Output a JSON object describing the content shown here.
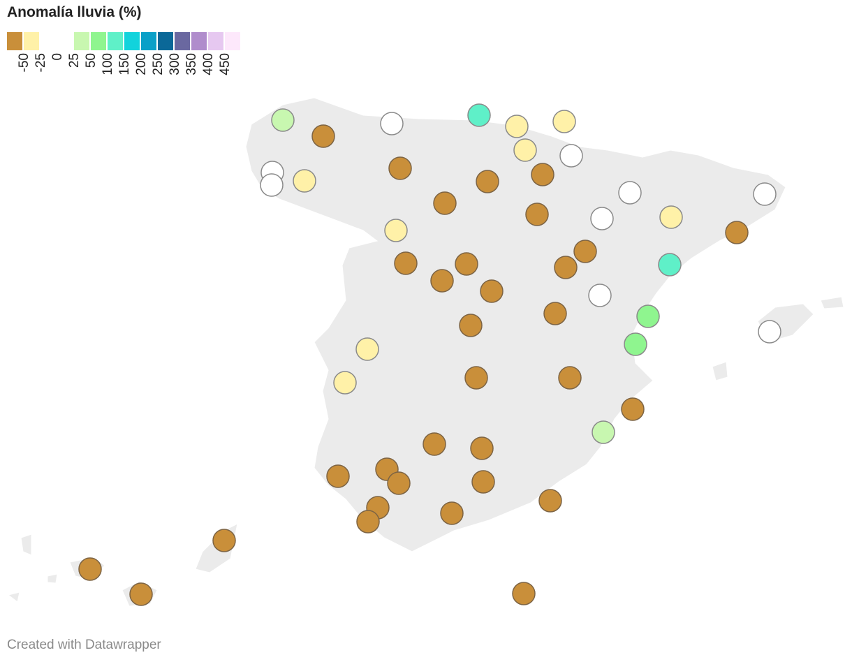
{
  "title": "Anomalía lluvia (%)",
  "legend": {
    "colors": [
      "#c98f3a",
      "#fff1a8",
      "#ffffff",
      "#ffffff",
      "#c8f7b0",
      "#8ff58f",
      "#5ff0c8",
      "#12d3dc",
      "#0aa0c8",
      "#0b6898",
      "#6a68a0",
      "#b08ccc",
      "#e6c8f0",
      "#fde8fb"
    ],
    "ticks": [
      -50,
      -25,
      0,
      25,
      50,
      100,
      150,
      200,
      250,
      300,
      350,
      400,
      450
    ]
  },
  "points": [
    "#c8f7b0",
    "#c98f3a",
    "#ffffff",
    "#5ff0c8",
    "#fff1a8",
    "#fff1a8",
    "#fff1a8",
    "#ffffff",
    "#c98f3a",
    "#ffffff",
    "#ffffff",
    "#fff1a8",
    "#c98f3a",
    "#c98f3a",
    "#c98f3a",
    "#ffffff",
    "#ffffff",
    "#c98f3a",
    "#ffffff",
    "#fff1a8",
    "#fff1a8",
    "#c98f3a",
    "#c98f3a",
    "#c98f3a",
    "#c98f3a",
    "#c98f3a",
    "#5ff0c8",
    "#c98f3a",
    "#c98f3a",
    "#ffffff",
    "#c98f3a",
    "#8ff58f",
    "#ffffff",
    "#c98f3a",
    "#8ff58f",
    "#fff1a8",
    "#fff1a8",
    "#c98f3a",
    "#c98f3a",
    "#c98f3a",
    "#c8f7b0",
    "#c98f3a",
    "#c98f3a",
    "#c98f3a",
    "#c98f3a",
    "#c98f3a",
    "#c98f3a",
    "#c98f3a",
    "#c98f3a",
    "#c98f3a",
    "#c98f3a",
    "#c98f3a",
    "#c98f3a",
    "#c98f3a",
    "#c98f3a"
  ],
  "footer": "Created with Datawrapper"
}
